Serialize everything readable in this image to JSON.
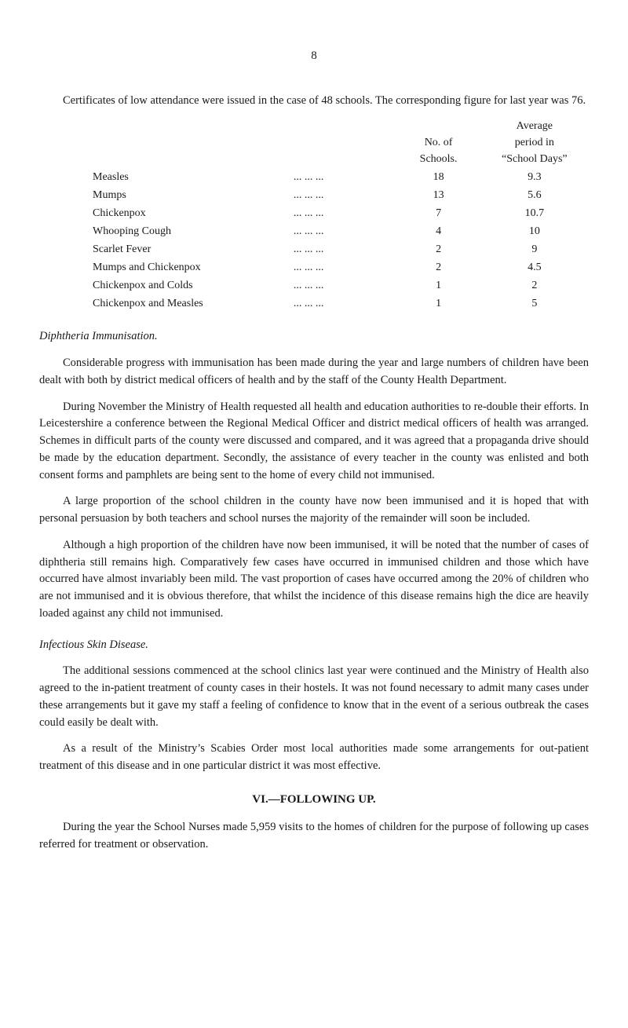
{
  "page_number": "8",
  "intro_paragraph": "Certificates of low attendance were issued in the case of 48 schools. The corresponding figure for last year was 76.",
  "table": {
    "header": {
      "col_num_line1": "No. of",
      "col_num_line2": "Schools.",
      "col_avg_line1": "Average",
      "col_avg_line2": "period in",
      "col_avg_line3": "“School Days”"
    },
    "rows": [
      {
        "label": "Measles",
        "num": "18",
        "avg": "9.3"
      },
      {
        "label": "Mumps",
        "num": "13",
        "avg": "5.6"
      },
      {
        "label": "Chickenpox",
        "num": "7",
        "avg": "10.7"
      },
      {
        "label": "Whooping Cough",
        "num": "4",
        "avg": "10"
      },
      {
        "label": "Scarlet Fever",
        "num": "2",
        "avg": "9"
      },
      {
        "label": "Mumps and Chickenpox",
        "num": "2",
        "avg": "4.5"
      },
      {
        "label": "Chickenpox and Colds",
        "num": "1",
        "avg": "2"
      },
      {
        "label": "Chickenpox and Measles",
        "num": "1",
        "avg": "5"
      }
    ]
  },
  "sub1_title": "Diphtheria Immunisation.",
  "sub1_p1": "Considerable progress with immunisation has been made during the year and large numbers of children have been dealt with both by district medical officers of health and by the staff of the County Health Department.",
  "sub1_p2": "During November the Ministry of Health requested all health and education authorities to re-double their efforts. In Leicestershire a conference between the Regional Medical Officer and district medical officers of health was arranged. Schemes in difficult parts of the county were discussed and compared, and it was agreed that a propaganda drive should be made by the education depart­ment. Secondly, the assistance of every teacher in the county was enlisted and both consent forms and pamphlets are being sent to the home of every child not immunised.",
  "sub1_p3": "A large proportion of the school children in the county have now been immunised and it is hoped that with personal persuasion by both teachers and school nurses the majority of the remainder will soon be included.",
  "sub1_p4": "Although a high proportion of the children have now been immunised, it will be noted that the number of cases of diphtheria still remains high. Com­paratively few cases have occurred in immunised children and those which have occurred have almost invariably been mild. The vast proportion of cases have occurred among the 20% of children who are not immunised and it is obvious therefore, that whilst the incidence of this disease remains high the dice are heavily loaded against any child not immunised.",
  "sub2_title": "Infectious Skin Disease.",
  "sub2_p1": "The additional sessions commenced at the school clinics last year were con­tinued and the Ministry of Health also agreed to the in-patient treatment of county cases in their hostels. It was not found necessary to admit many cases under these arrangements but it gave my staff a feeling of confidence to know that in the event of a serious outbreak the cases could easily be dealt with.",
  "sub2_p2": "As a result of the Ministry’s Scabies Order most local authorities made some arrangements for out-patient treatment of this disease and in one particular district it was most effective.",
  "section_heading": "VI.—FOLLOWING UP.",
  "final_para": "During the year the School Nurses made 5,959 visits to the homes of children for the purpose of following up cases referred for treatment or observation."
}
